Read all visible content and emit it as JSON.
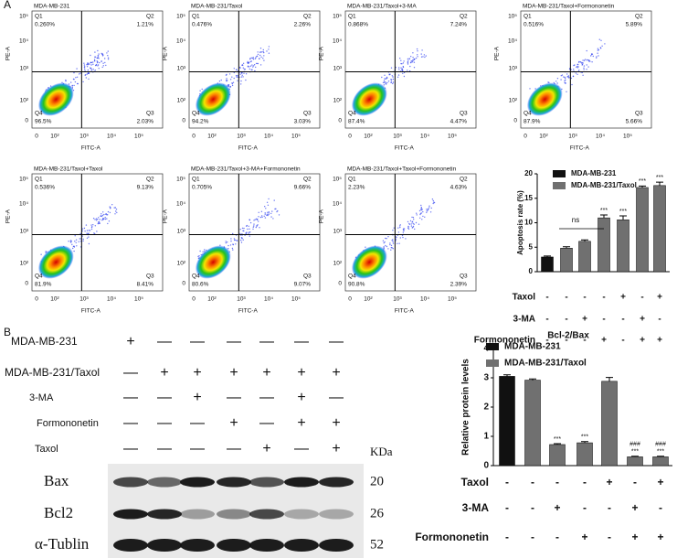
{
  "panel_a": {
    "label": "A",
    "x_label": "FITC-A",
    "y_label": "PE-A",
    "ticks": [
      "0",
      "10²",
      "10³",
      "10⁴",
      "10⁵"
    ],
    "flow_plots": [
      {
        "title": "MDA-MB-231",
        "quadrants": [
          {
            "label": "Q1",
            "value": "0.260%"
          },
          {
            "label": "Q2",
            "value": "1.21%"
          },
          {
            "label": "Q3",
            "value": "2.03%"
          },
          {
            "label": "Q4",
            "value": "96.5%"
          }
        ]
      },
      {
        "title": "MDA-MB-231/Taxol",
        "quadrants": [
          {
            "label": "Q1",
            "value": "0.476%"
          },
          {
            "label": "Q2",
            "value": "2.26%"
          },
          {
            "label": "Q3",
            "value": "3.03%"
          },
          {
            "label": "Q4",
            "value": "94.2%"
          }
        ]
      },
      {
        "title": "MDA-MB-231/Taxol+3-MA",
        "quadrants": [
          {
            "label": "Q1",
            "value": "0.868%"
          },
          {
            "label": "Q2",
            "value": "7.24%"
          },
          {
            "label": "Q3",
            "value": "4.47%"
          },
          {
            "label": "Q4",
            "value": "87.4%"
          }
        ]
      },
      {
        "title": "MDA-MB-231/Taxol+Formononetin",
        "quadrants": [
          {
            "label": "Q1",
            "value": "0.516%"
          },
          {
            "label": "Q2",
            "value": "5.89%"
          },
          {
            "label": "Q3",
            "value": "5.66%"
          },
          {
            "label": "Q4",
            "value": "87.9%"
          }
        ]
      },
      {
        "title": "MDA-MB-231/Taxol+Taxol",
        "quadrants": [
          {
            "label": "Q1",
            "value": "0.536%"
          },
          {
            "label": "Q2",
            "value": "9.13%"
          },
          {
            "label": "Q3",
            "value": "8.41%"
          },
          {
            "label": "Q4",
            "value": "81.9%"
          }
        ]
      },
      {
        "title": "MDA-MB-231/Taxol+3-MA+Formononetin",
        "quadrants": [
          {
            "label": "Q1",
            "value": "0.705%"
          },
          {
            "label": "Q2",
            "value": "9.66%"
          },
          {
            "label": "Q3",
            "value": "9.07%"
          },
          {
            "label": "Q4",
            "value": "80.6%"
          }
        ]
      },
      {
        "title": "MDA-MB-231/Taxol+Taxol+Formononetin",
        "quadrants": [
          {
            "label": "Q1",
            "value": "2.23%"
          },
          {
            "label": "Q2",
            "value": "4.63%"
          },
          {
            "label": "Q3",
            "value": "2.39%"
          },
          {
            "label": "Q4",
            "value": "90.8%"
          }
        ]
      }
    ]
  },
  "panel_b": {
    "label": "B",
    "table": [
      {
        "label": "MDA-MB-231",
        "signs": [
          "+",
          "—",
          "—",
          "—",
          "—",
          "—",
          "—"
        ]
      },
      {
        "label": "MDA-MB-231/Taxol",
        "signs": [
          "—",
          "+",
          "+",
          "+",
          "+",
          "+",
          "+"
        ]
      },
      {
        "label": "3-MA",
        "signs": [
          "—",
          "—",
          "+",
          "—",
          "—",
          "+",
          "—"
        ]
      },
      {
        "label": "Formononetin",
        "signs": [
          "—",
          "—",
          "—",
          "+",
          "—",
          "+",
          "+"
        ]
      },
      {
        "label": "Taxol",
        "signs": [
          "—",
          "—",
          "—",
          "—",
          "+",
          "—",
          "+"
        ]
      }
    ],
    "size_unit": "KDa",
    "blots": [
      {
        "label": "Bax",
        "size": "20"
      },
      {
        "label": "Bcl2",
        "size": "26"
      },
      {
        "label": "α-Tublin",
        "size": "52"
      }
    ]
  },
  "chart_data": [
    {
      "type": "bar",
      "y_label": "Apoptosis rate (%)",
      "ylim": [
        0,
        20
      ],
      "yticks": [
        0,
        5,
        10,
        15,
        20
      ],
      "legend": "top",
      "series": [
        {
          "name": "MDA-MB-231",
          "color": "#111111",
          "values": [
            3.0,
            null,
            null,
            null,
            null,
            null,
            null
          ],
          "errors": [
            0.2,
            null,
            null,
            null,
            null,
            null,
            null
          ]
        },
        {
          "name": "MDA-MB-231/Taxol",
          "color": "#707070",
          "values": [
            null,
            4.8,
            6.2,
            11.0,
            10.6,
            17.2,
            17.6
          ],
          "errors": [
            null,
            0.3,
            0.3,
            0.6,
            0.8,
            0.3,
            0.7
          ]
        }
      ],
      "ns_label": "ns",
      "stars": [
        null,
        null,
        null,
        "***",
        "***",
        "***",
        "***"
      ],
      "treatments": [
        {
          "label": "Taxol",
          "signs": [
            "-",
            "-",
            "-",
            "-",
            "+",
            "-",
            "+"
          ]
        },
        {
          "label": "3-MA",
          "signs": [
            "-",
            "-",
            "+",
            "-",
            "-",
            "+",
            "-"
          ]
        },
        {
          "label": "Formononetin",
          "signs": [
            "-",
            "-",
            "-",
            "+",
            "-",
            "+",
            "+"
          ]
        }
      ]
    },
    {
      "type": "bar",
      "title": "Bcl-2/Bax",
      "y_label": "Relative  protein levels",
      "ylim": [
        0,
        4
      ],
      "yticks": [
        0,
        1,
        2,
        3,
        4
      ],
      "legend": "top",
      "series": [
        {
          "name": "MDA-MB-231",
          "color": "#111111",
          "values": [
            3.05,
            null,
            null,
            null,
            null,
            null,
            null
          ],
          "errors": [
            0.05,
            null,
            null,
            null,
            null,
            null,
            null
          ]
        },
        {
          "name": "MDA-MB-231/Taxol",
          "color": "#707070",
          "values": [
            null,
            2.92,
            0.72,
            0.78,
            2.88,
            0.3,
            0.3
          ],
          "errors": [
            null,
            0.04,
            0.03,
            0.04,
            0.13,
            0.02,
            0.02
          ]
        }
      ],
      "stars": [
        null,
        null,
        "***",
        "***",
        null,
        "***",
        "***"
      ],
      "hashes": [
        null,
        null,
        null,
        null,
        null,
        "###",
        "###"
      ],
      "treatments": [
        {
          "label": "Taxol",
          "signs": [
            "-",
            "-",
            "-",
            "-",
            "+",
            "-",
            "+"
          ]
        },
        {
          "label": "3-MA",
          "signs": [
            "-",
            "-",
            "+",
            "-",
            "-",
            "+",
            "-"
          ]
        },
        {
          "label": "Formononetin",
          "signs": [
            "-",
            "-",
            "-",
            "+",
            "-",
            "+",
            "+"
          ]
        }
      ]
    }
  ]
}
